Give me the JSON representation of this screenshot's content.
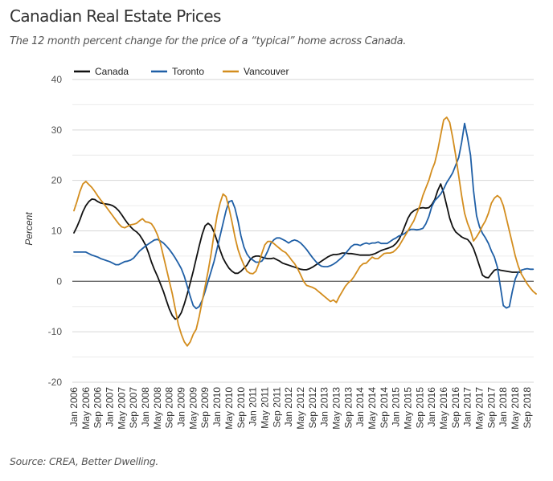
{
  "header": {
    "title": "Canadian Real Estate Prices",
    "subtitle": "The 12 month percent change for the price of a “typical” home across Canada."
  },
  "footer": {
    "source": "Source: CREA, Better Dwelling."
  },
  "chart_data": {
    "type": "line",
    "title": "Canadian Real Estate Prices",
    "subtitle": "The 12 month percent change for the price of a “typical” home across Canada.",
    "xlabel": "",
    "ylabel": "Percent",
    "ylim": [
      -20,
      40
    ],
    "yticks": [
      40,
      30,
      20,
      10,
      0,
      -10,
      -20
    ],
    "grid": true,
    "legend_position": "top-left",
    "x_start": "Jan 2006",
    "x_frequency": "monthly",
    "x_end": "Dec 2018",
    "xtick_labels": [
      "Jan 2006",
      "May 2006",
      "Sep 2006",
      "Jan 2007",
      "May 2007",
      "Sep 2007",
      "Jan 2008",
      "May 2008",
      "Sep 2008",
      "Jan 2009",
      "May 2009",
      "Sep 2009",
      "Jan 2010",
      "May 2010",
      "Sep 2010",
      "Jan 2011",
      "May 2011",
      "Sep 2011",
      "Jan 2012",
      "May 2012",
      "Sep 2012",
      "Jan 2013",
      "May 2013",
      "Sep 2013",
      "Jan 2014",
      "May 2014",
      "Sep 2014",
      "Jan 2015",
      "May 2015",
      "Sep 2015",
      "Jan 2016",
      "May 2016",
      "Sep 2016",
      "Jan 2017",
      "May 2017",
      "Sep 2017",
      "Jan 2018",
      "May 2018",
      "Sep 2018"
    ],
    "series": [
      {
        "name": "Canada",
        "color": "#111111",
        "values": [
          9.6,
          10.8,
          12.2,
          13.8,
          15.0,
          15.8,
          16.3,
          16.2,
          15.8,
          15.5,
          15.4,
          15.3,
          15.2,
          15.0,
          14.6,
          14.0,
          13.2,
          12.3,
          11.5,
          10.8,
          10.2,
          9.8,
          9.2,
          8.3,
          7.2,
          5.6,
          3.8,
          2.3,
          1.0,
          -0.5,
          -2.0,
          -3.8,
          -5.5,
          -6.8,
          -7.5,
          -7.2,
          -6.2,
          -4.5,
          -2.5,
          -0.3,
          2.0,
          4.5,
          7.0,
          9.3,
          11.0,
          11.5,
          11.0,
          9.7,
          8.0,
          6.2,
          4.6,
          3.5,
          2.6,
          2.0,
          1.6,
          1.6,
          2.0,
          2.6,
          3.2,
          4.2,
          4.8,
          5.0,
          5.0,
          4.8,
          4.6,
          4.5,
          4.5,
          4.6,
          4.3,
          4.0,
          3.6,
          3.4,
          3.2,
          3.0,
          2.8,
          2.6,
          2.4,
          2.3,
          2.3,
          2.5,
          2.8,
          3.2,
          3.6,
          4.0,
          4.4,
          4.8,
          5.1,
          5.3,
          5.3,
          5.4,
          5.6,
          5.6,
          5.5,
          5.5,
          5.4,
          5.3,
          5.2,
          5.2,
          5.2,
          5.2,
          5.3,
          5.5,
          5.8,
          6.1,
          6.3,
          6.5,
          6.7,
          7.0,
          7.5,
          8.3,
          9.5,
          11.0,
          12.5,
          13.5,
          14.0,
          14.3,
          14.5,
          14.6,
          14.5,
          14.6,
          15.2,
          16.2,
          18.0,
          19.3,
          17.5,
          15.0,
          12.5,
          10.8,
          9.8,
          9.3,
          8.8,
          8.5,
          8.3,
          7.6,
          6.5,
          4.8,
          3.0,
          1.2,
          0.8,
          0.7,
          1.5,
          2.2,
          2.4,
          2.2,
          2.1,
          2.0,
          1.9,
          1.8,
          1.8,
          1.8,
          1.8
        ]
      },
      {
        "name": "Toronto",
        "color": "#1f5fa6",
        "values": [
          5.8,
          5.8,
          5.8,
          5.8,
          5.8,
          5.5,
          5.2,
          5.0,
          4.8,
          4.5,
          4.3,
          4.1,
          3.9,
          3.6,
          3.3,
          3.3,
          3.6,
          3.9,
          4.0,
          4.2,
          4.6,
          5.3,
          6.0,
          6.5,
          7.0,
          7.4,
          7.8,
          8.2,
          8.3,
          8.0,
          7.6,
          7.0,
          6.3,
          5.5,
          4.6,
          3.6,
          2.5,
          1.0,
          -1.0,
          -3.0,
          -4.8,
          -5.4,
          -5.0,
          -3.8,
          -2.0,
          0.0,
          2.0,
          4.0,
          6.5,
          9.0,
          11.5,
          14.0,
          15.8,
          16.0,
          14.5,
          12.0,
          9.0,
          6.8,
          5.4,
          4.6,
          4.2,
          3.8,
          3.8,
          4.0,
          4.8,
          6.0,
          7.5,
          8.2,
          8.6,
          8.6,
          8.3,
          8.0,
          7.6,
          8.0,
          8.2,
          8.0,
          7.6,
          7.0,
          6.3,
          5.5,
          4.7,
          4.0,
          3.4,
          3.0,
          2.9,
          2.9,
          3.1,
          3.4,
          3.8,
          4.3,
          4.8,
          5.5,
          6.2,
          6.9,
          7.3,
          7.3,
          7.1,
          7.4,
          7.6,
          7.4,
          7.6,
          7.6,
          7.8,
          7.5,
          7.5,
          7.5,
          7.9,
          8.3,
          8.6,
          9.0,
          9.2,
          9.5,
          10.0,
          10.3,
          10.3,
          10.2,
          10.3,
          10.5,
          11.4,
          12.8,
          14.8,
          16.0,
          16.6,
          17.3,
          18.3,
          19.6,
          20.5,
          21.5,
          23.0,
          24.5,
          27.5,
          31.3,
          28.5,
          25.0,
          18.0,
          13.0,
          10.8,
          9.5,
          8.6,
          7.5,
          6.0,
          4.8,
          2.8,
          -1.0,
          -4.8,
          -5.3,
          -5.0,
          -2.0,
          0.5,
          1.8,
          2.2,
          2.4,
          2.5,
          2.4,
          2.4
        ]
      },
      {
        "name": "Vancouver",
        "color": "#d38d1e",
        "values": [
          14.0,
          15.8,
          17.8,
          19.3,
          19.8,
          19.2,
          18.6,
          17.8,
          16.9,
          16.1,
          15.4,
          14.6,
          13.8,
          13.0,
          12.2,
          11.4,
          10.8,
          10.6,
          10.9,
          11.2,
          11.3,
          11.5,
          12.0,
          12.4,
          11.8,
          11.7,
          11.4,
          10.5,
          9.2,
          7.5,
          5.0,
          2.5,
          0.0,
          -2.5,
          -5.5,
          -8.5,
          -10.5,
          -12.0,
          -12.8,
          -12.0,
          -10.5,
          -9.5,
          -7.0,
          -4.0,
          -1.0,
          2.0,
          5.5,
          9.5,
          13.0,
          15.5,
          17.3,
          16.8,
          14.5,
          11.8,
          8.8,
          6.3,
          4.6,
          3.2,
          2.0,
          1.6,
          1.5,
          2.0,
          3.5,
          5.5,
          7.2,
          7.9,
          7.9,
          7.5,
          7.0,
          6.5,
          6.0,
          5.7,
          5.0,
          4.2,
          3.5,
          2.5,
          1.3,
          0.0,
          -0.8,
          -1.0,
          -1.2,
          -1.5,
          -2.0,
          -2.5,
          -3.0,
          -3.5,
          -4.0,
          -3.7,
          -4.2,
          -3.0,
          -2.0,
          -1.0,
          -0.3,
          0.2,
          1.0,
          2.0,
          3.0,
          3.5,
          3.6,
          4.2,
          4.8,
          4.5,
          4.5,
          5.0,
          5.5,
          5.6,
          5.6,
          5.8,
          6.3,
          7.0,
          8.0,
          9.0,
          10.0,
          11.0,
          12.0,
          13.5,
          15.0,
          17.0,
          18.5,
          20.0,
          22.0,
          23.5,
          26.0,
          29.0,
          32.0,
          32.5,
          31.5,
          28.5,
          25.0,
          21.0,
          17.0,
          13.5,
          11.5,
          10.0,
          8.0,
          8.8,
          9.8,
          11.0,
          12.0,
          13.5,
          15.5,
          16.5,
          17.0,
          16.5,
          15.0,
          12.5,
          10.0,
          7.5,
          5.0,
          3.0,
          1.5,
          0.5,
          -0.5,
          -1.3,
          -2.0,
          -2.5
        ]
      }
    ]
  }
}
